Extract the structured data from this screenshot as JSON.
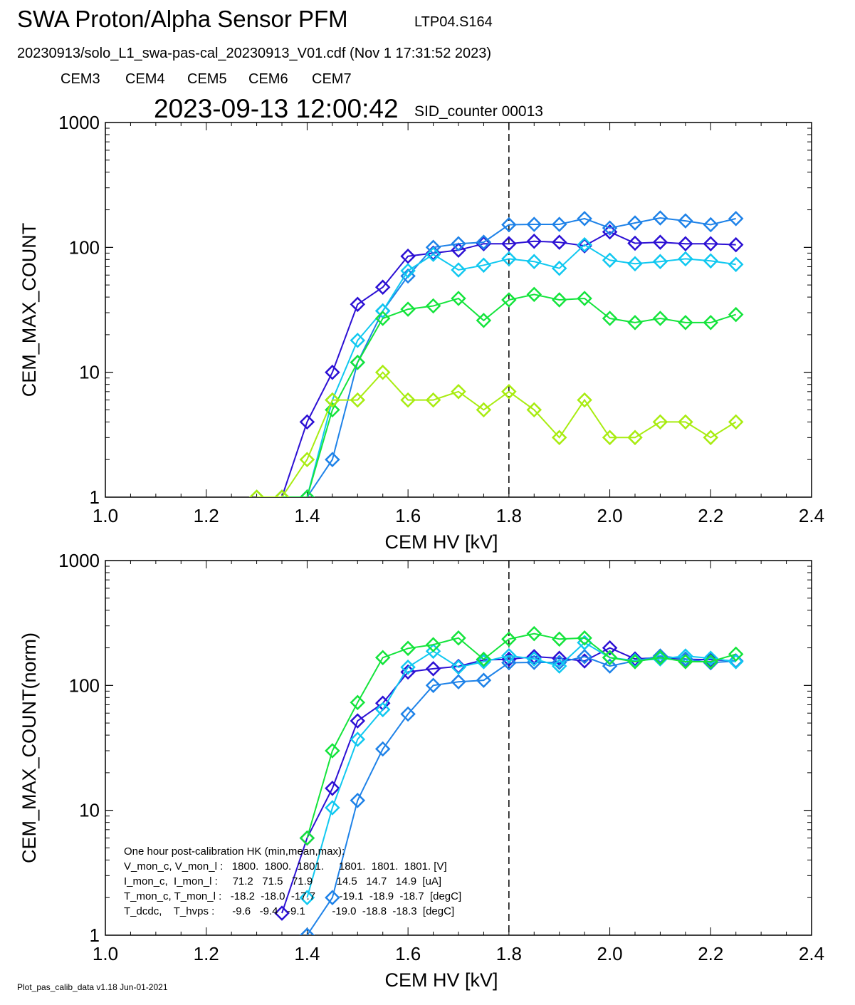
{
  "header": {
    "title": "SWA Proton/Alpha Sensor PFM",
    "run_id": "LTP04.S164",
    "file_line": "20230913/solo_L1_swa-pas-cal_20230913_V01.cdf  (Nov  1 17:31:52 2023)",
    "timestamp": "2023-09-13 12:00:42",
    "sid_label": "SID_counter 00013"
  },
  "legend": [
    {
      "label": "CEM3",
      "color": "#2c10d4"
    },
    {
      "label": "CEM4",
      "color": "#1e82e8"
    },
    {
      "label": "CEM5",
      "color": "#10c8f0"
    },
    {
      "label": "CEM6",
      "color": "#14e43c"
    },
    {
      "label": "CEM7",
      "color": "#a8ec10"
    }
  ],
  "footer": "Plot_pas_calib_data v1.18 Jun-01-2021",
  "hk_box": {
    "lines": [
      "One hour post-calibration HK (min,mean,max):",
      "V_mon_c, V_mon_l :   1800.  1800.  1801.     1801.  1801.  1801. [V]",
      "I_mon_c,  I_mon_l :     71.2   71.5   71.9        14.5   14.7   14.9  [uA]",
      "T_mon_c, T_mon_l :   -18.2  -18.0  -17.7        -19.1  -18.9  -18.7  [degC]",
      "T_dcdc,    T_hvps :      -9.6   -9.4   -9.1         -19.0  -18.8  -18.3  [degC]"
    ]
  },
  "chart_data": [
    {
      "type": "line",
      "xlabel": "CEM HV [kV]",
      "ylabel": "CEM_MAX_COUNT",
      "xlim": [
        1.0,
        2.4
      ],
      "ylim": [
        1,
        1000
      ],
      "yscale": "log",
      "xticks": [
        "1.0",
        "1.2",
        "1.4",
        "1.6",
        "1.8",
        "2.0",
        "2.2",
        "2.4"
      ],
      "yticks": [
        "1",
        "10",
        "100",
        "1000"
      ],
      "marker": "diamond",
      "vline": 1.8,
      "series": [
        {
          "name": "CEM3",
          "color": "#2c10d4",
          "x": [
            1.35,
            1.4,
            1.45,
            1.5,
            1.55,
            1.6,
            1.65,
            1.7,
            1.75,
            1.8,
            1.85,
            1.9,
            1.95,
            2.0,
            2.05,
            2.1,
            2.15,
            2.2,
            2.25
          ],
          "y": [
            1,
            4,
            10,
            35,
            48,
            85,
            90,
            95,
            107,
            107,
            112,
            110,
            103,
            133,
            108,
            110,
            107,
            107,
            105
          ]
        },
        {
          "name": "CEM4",
          "color": "#1e82e8",
          "x": [
            1.4,
            1.45,
            1.5,
            1.55,
            1.6,
            1.65,
            1.7,
            1.75,
            1.8,
            1.85,
            1.9,
            1.95,
            2.0,
            2.05,
            2.1,
            2.15,
            2.2,
            2.25
          ],
          "y": [
            1,
            2,
            12,
            31,
            59,
            100,
            107,
            110,
            152,
            153,
            153,
            170,
            143,
            157,
            172,
            163,
            152,
            170
          ]
        },
        {
          "name": "CEM5",
          "color": "#10c8f0",
          "x": [
            1.4,
            1.45,
            1.5,
            1.55,
            1.6,
            1.65,
            1.7,
            1.75,
            1.8,
            1.85,
            1.9,
            1.95,
            2.0,
            2.05,
            2.1,
            2.15,
            2.2,
            2.25
          ],
          "y": [
            1,
            6,
            18,
            31,
            65,
            88,
            66,
            72,
            81,
            77,
            68,
            105,
            79,
            74,
            77,
            81,
            78,
            73
          ]
        },
        {
          "name": "CEM6",
          "color": "#14e43c",
          "x": [
            1.3,
            1.35,
            1.4,
            1.45,
            1.5,
            1.55,
            1.6,
            1.65,
            1.7,
            1.75,
            1.8,
            1.85,
            1.9,
            1.95,
            2.0,
            2.05,
            2.1,
            2.15,
            2.2,
            2.25
          ],
          "y": [
            1,
            1,
            1,
            5,
            12,
            27,
            32,
            34,
            39,
            26,
            38,
            42,
            38,
            39,
            27,
            25,
            27,
            25,
            25,
            29
          ]
        },
        {
          "name": "CEM7",
          "color": "#a8ec10",
          "x": [
            1.3,
            1.35,
            1.4,
            1.45,
            1.5,
            1.55,
            1.6,
            1.65,
            1.7,
            1.75,
            1.8,
            1.85,
            1.9,
            1.95,
            2.0,
            2.05,
            2.1,
            2.15,
            2.2,
            2.25
          ],
          "y": [
            1,
            1,
            2,
            6,
            6,
            10,
            6,
            6,
            7,
            5,
            7,
            5,
            3,
            6,
            3,
            3,
            4,
            4,
            3,
            4
          ]
        }
      ]
    },
    {
      "type": "line",
      "xlabel": "CEM HV [kV]",
      "ylabel": "CEM_MAX_COUNT(norm)",
      "xlim": [
        1.0,
        2.4
      ],
      "ylim": [
        1,
        1000
      ],
      "yscale": "log",
      "xticks": [
        "1.0",
        "1.2",
        "1.4",
        "1.6",
        "1.8",
        "2.0",
        "2.2",
        "2.4"
      ],
      "yticks": [
        "1",
        "10",
        "100",
        "1000"
      ],
      "marker": "diamond",
      "vline": 1.8,
      "series": [
        {
          "name": "CEM3",
          "color": "#2c10d4",
          "x": [
            1.35,
            1.4,
            1.45,
            1.5,
            1.55,
            1.6,
            1.65,
            1.7,
            1.75,
            1.8,
            1.85,
            1.9,
            1.95,
            2.0,
            2.05,
            2.1,
            2.15,
            2.2,
            2.25
          ],
          "y": [
            1.5,
            6,
            15,
            52,
            72,
            128,
            136,
            142,
            160,
            162,
            170,
            165,
            157,
            200,
            163,
            167,
            162,
            161,
            157
          ]
        },
        {
          "name": "CEM4",
          "color": "#1e82e8",
          "x": [
            1.4,
            1.45,
            1.5,
            1.55,
            1.6,
            1.65,
            1.7,
            1.75,
            1.8,
            1.85,
            1.9,
            1.95,
            2.0,
            2.05,
            2.1,
            2.15,
            2.2,
            2.25
          ],
          "y": [
            1,
            2,
            12,
            31,
            59,
            100,
            107,
            110,
            152,
            153,
            153,
            170,
            143,
            157,
            172,
            163,
            152,
            157
          ]
        },
        {
          "name": "CEM5",
          "color": "#10c8f0",
          "x": [
            1.4,
            1.45,
            1.5,
            1.55,
            1.6,
            1.65,
            1.7,
            1.75,
            1.8,
            1.85,
            1.9,
            1.95,
            2.0,
            2.05,
            2.1,
            2.15,
            2.2,
            2.25
          ],
          "y": [
            2,
            10.5,
            37,
            64,
            140,
            188,
            140,
            155,
            173,
            163,
            143,
            220,
            167,
            158,
            163,
            172,
            165,
            155
          ]
        },
        {
          "name": "CEM6",
          "color": "#14e43c",
          "x": [
            1.4,
            1.45,
            1.5,
            1.55,
            1.6,
            1.65,
            1.7,
            1.75,
            1.8,
            1.85,
            1.9,
            1.95,
            2.0,
            2.05,
            2.1,
            2.15,
            2.2,
            2.25
          ],
          "y": [
            6,
            30,
            73,
            167,
            198,
            212,
            240,
            162,
            235,
            260,
            235,
            240,
            167,
            155,
            167,
            155,
            155,
            178
          ]
        },
        {
          "name": "CEM7",
          "color": "#a8ec10",
          "x": [],
          "y": []
        }
      ]
    }
  ]
}
